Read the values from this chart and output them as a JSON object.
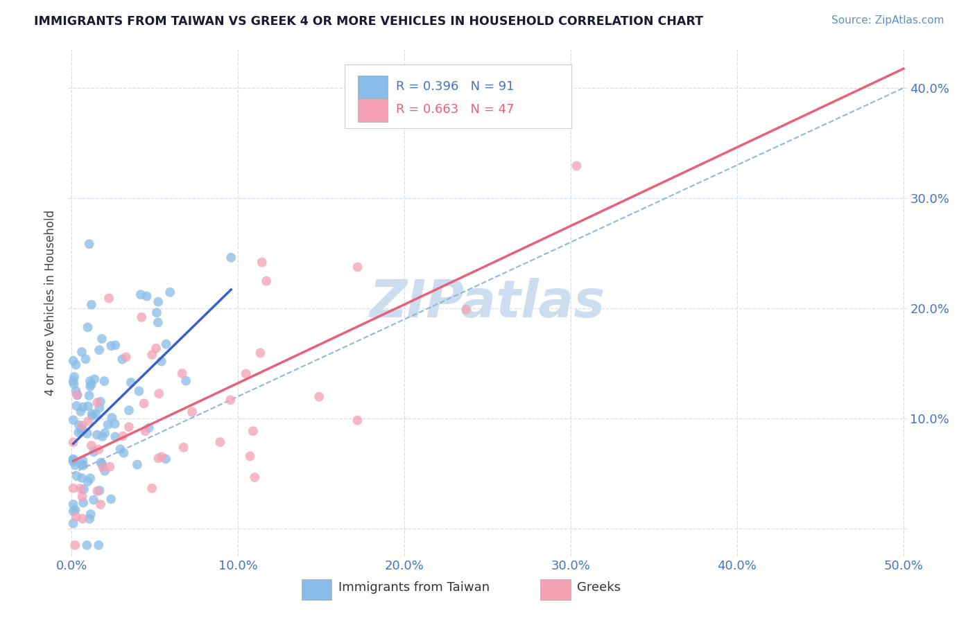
{
  "title": "IMMIGRANTS FROM TAIWAN VS GREEK 4 OR MORE VEHICLES IN HOUSEHOLD CORRELATION CHART",
  "source": "Source: ZipAtlas.com",
  "ylabel": "4 or more Vehicles in Household",
  "xlim": [
    -0.002,
    0.502
  ],
  "ylim": [
    -0.025,
    0.435
  ],
  "yticks": [
    0.0,
    0.1,
    0.2,
    0.3,
    0.4
  ],
  "xticks": [
    0.0,
    0.1,
    0.2,
    0.3,
    0.4,
    0.5
  ],
  "taiwan_R": 0.396,
  "taiwan_N": 91,
  "greek_R": 0.663,
  "greek_N": 47,
  "taiwan_color": "#88bce8",
  "greek_color": "#f4a0b5",
  "taiwan_line_color": "#3a5fc8",
  "greek_line_color": "#e8607a",
  "dashed_line_color": "#90b8d8",
  "background_color": "#ffffff",
  "grid_color": "#d5dde8",
  "watermark": "ZIPatlas",
  "watermark_color": "#ccddf0",
  "title_color": "#1a1a2e",
  "source_color": "#6090c0",
  "axis_color": "#4472c4",
  "ylabel_color": "#444444",
  "legend_text_blue": "#4472c4",
  "legend_text_pink": "#e8607a"
}
